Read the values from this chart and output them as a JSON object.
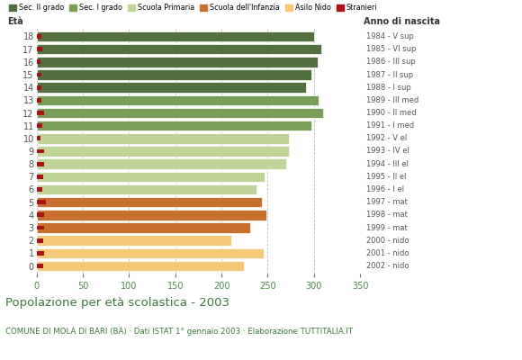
{
  "ages": [
    18,
    17,
    16,
    15,
    14,
    13,
    12,
    11,
    10,
    9,
    8,
    7,
    6,
    5,
    4,
    3,
    2,
    1,
    0
  ],
  "anni_nascita": [
    "1984 - V sup",
    "1985 - VI sup",
    "1986 - III sup",
    "1987 - II sup",
    "1988 - I sup",
    "1989 - III med",
    "1990 - II med",
    "1991 - I med",
    "1992 - V el",
    "1993 - IV el",
    "1994 - III el",
    "1995 - II el",
    "1996 - I el",
    "1997 - mat",
    "1998 - mat",
    "1999 - mat",
    "2000 - nido",
    "2001 - nido",
    "2002 - nido"
  ],
  "values": [
    300,
    308,
    304,
    297,
    291,
    305,
    310,
    297,
    273,
    273,
    270,
    247,
    238,
    244,
    249,
    231,
    211,
    246,
    224
  ],
  "stranieri": [
    5,
    6,
    4,
    5,
    5,
    5,
    8,
    6,
    4,
    8,
    8,
    7,
    6,
    10,
    8,
    8,
    7,
    8,
    7
  ],
  "color_sec2": "#527040",
  "color_sec1": "#7a9e5a",
  "color_primaria": "#c0d49a",
  "color_infanzia": "#c87030",
  "color_nido": "#f5c97a",
  "color_stranieri": "#aa1111",
  "title": "Popolazione per età scolastica - 2003",
  "subtitle": "COMUNE DI MOLA DI BARI (BA) · Dati ISTAT 1° gennaio 2003 · Elaborazione TUTTITALIA.IT",
  "xlim": [
    0,
    350
  ],
  "xticks": [
    0,
    50,
    100,
    150,
    200,
    250,
    300,
    350
  ],
  "bar_height": 0.82,
  "background_color": "#ffffff",
  "grid_color": "#bbbbbb",
  "axis_color": "#4a8a4a",
  "label_color": "#555555"
}
